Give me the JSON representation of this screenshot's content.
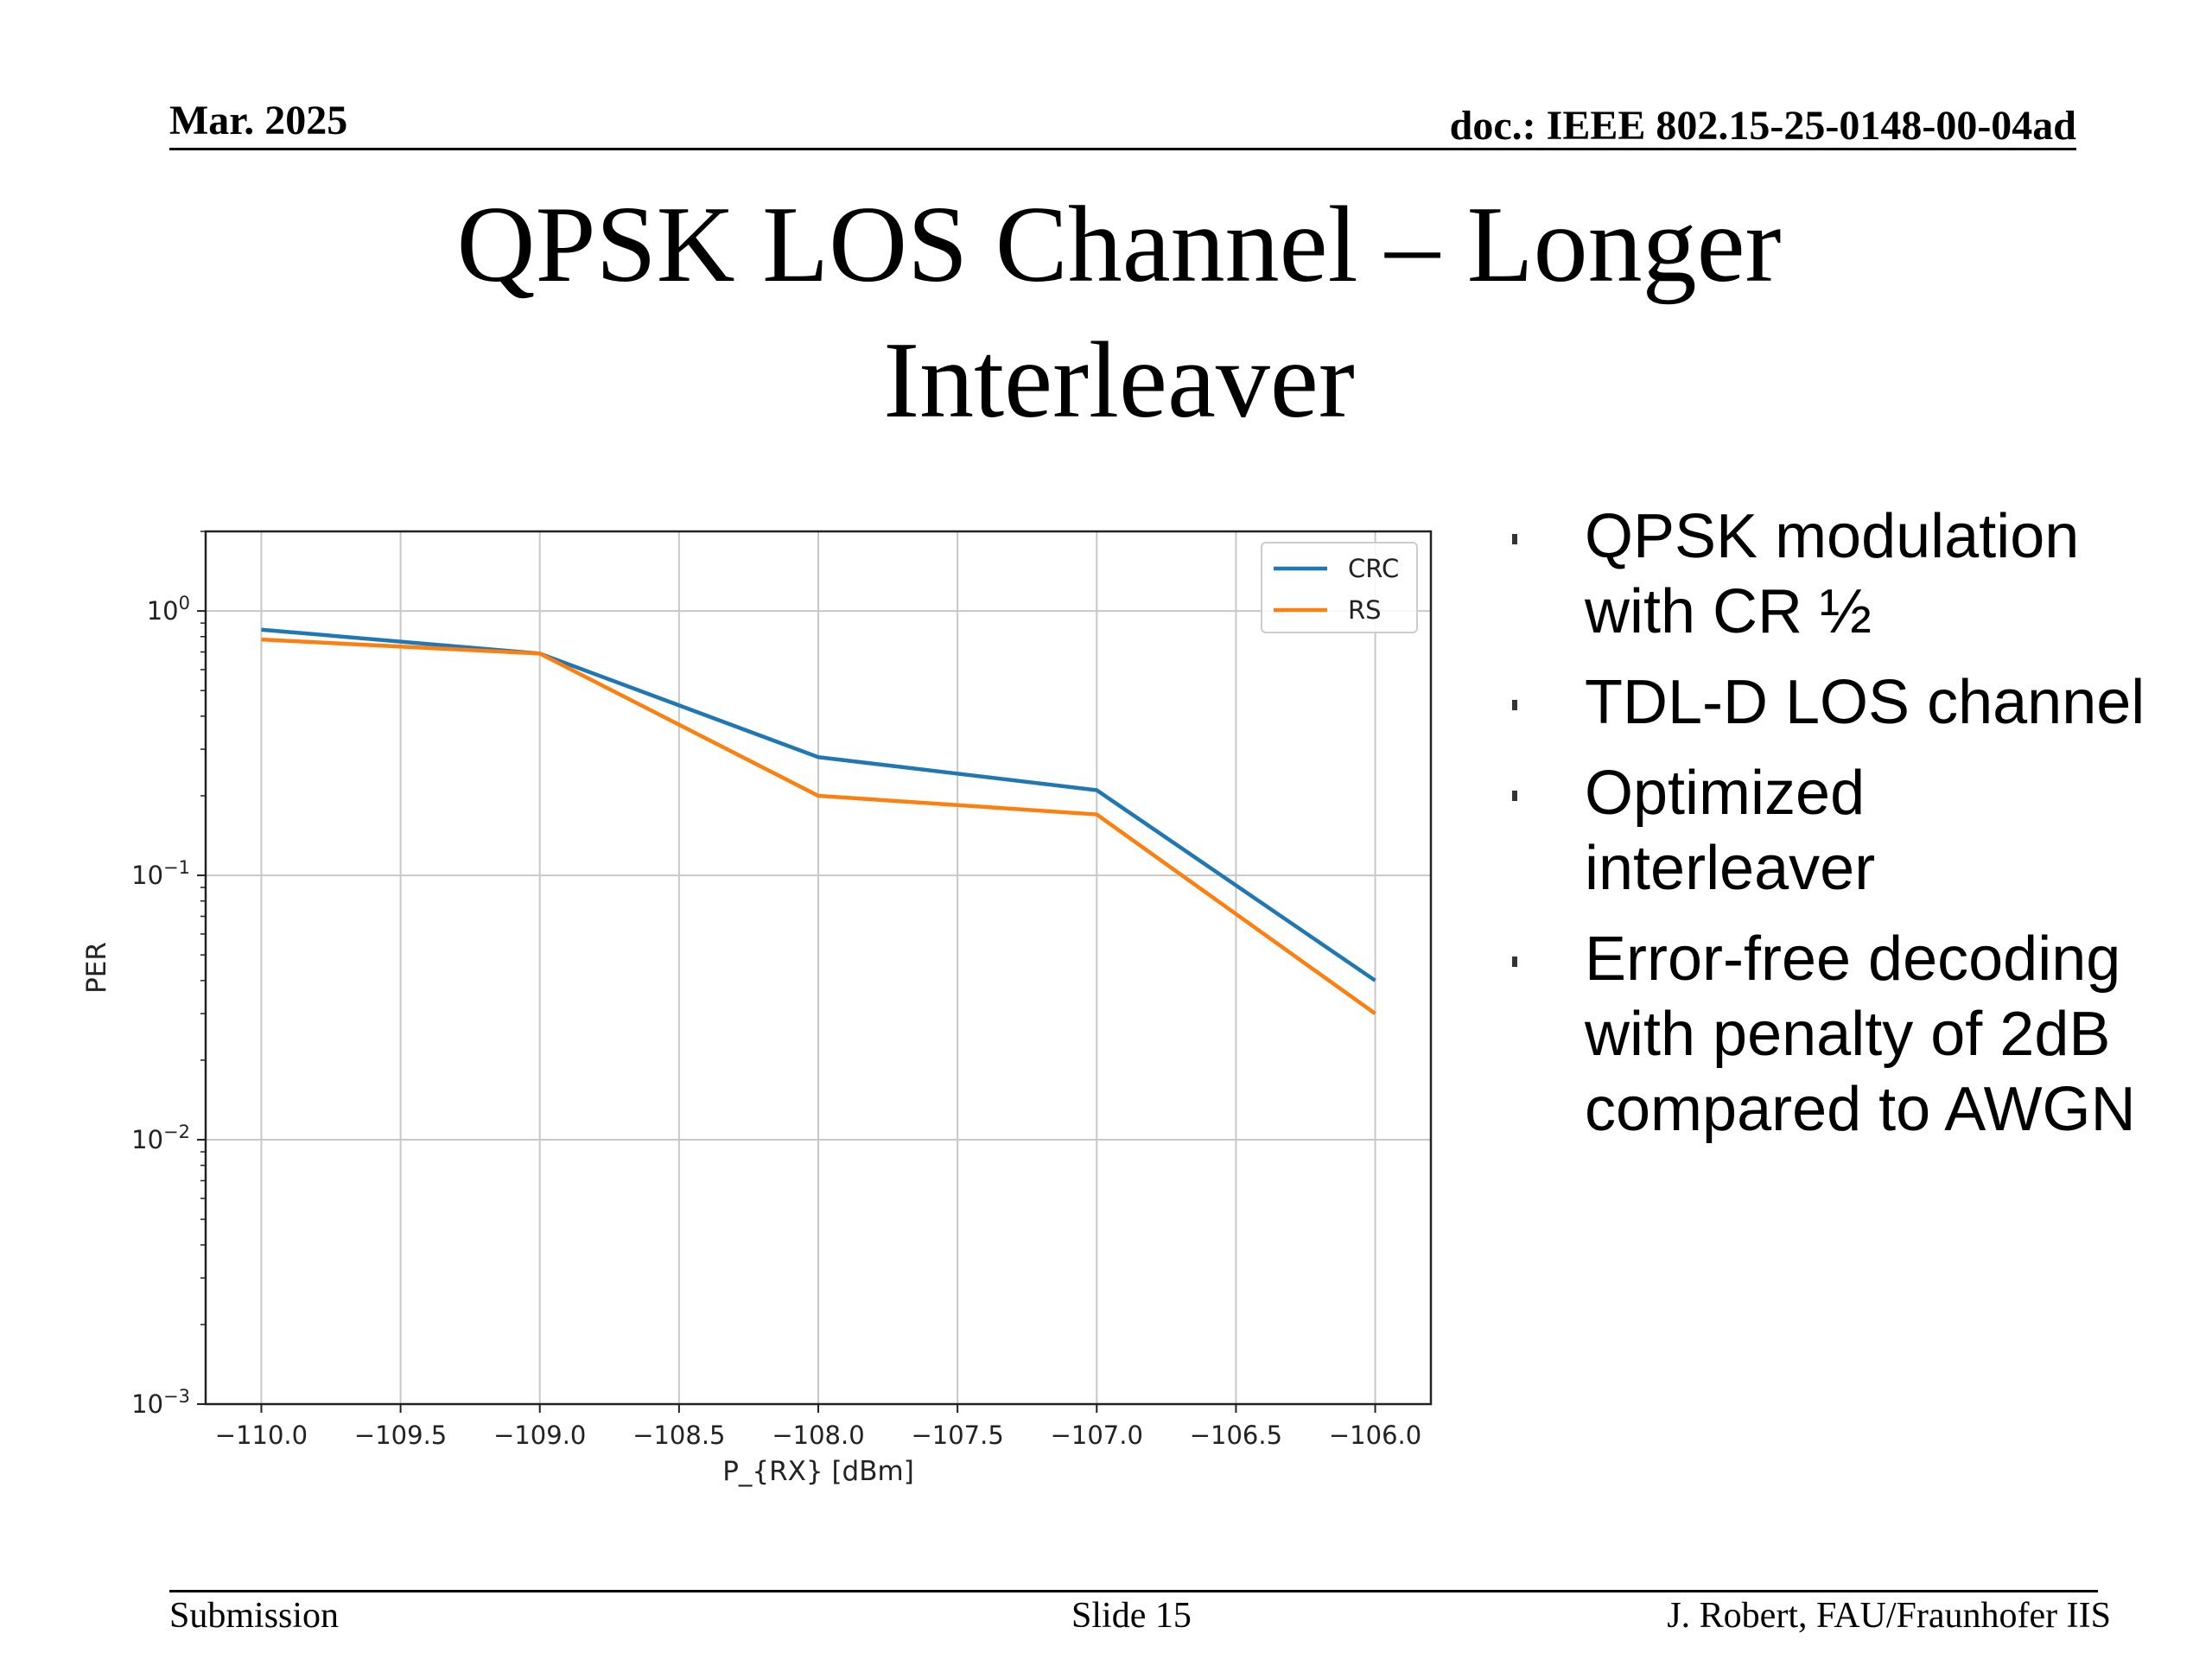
{
  "header": {
    "date": "Mar. 2025",
    "doc": "doc.: IEEE 802.15-25-0148-00-04ad"
  },
  "slide_title_line1": "QPSK LOS Channel – Longer",
  "slide_title_line2": "Interleaver",
  "bullets": [
    "QPSK modulation with CR ½",
    "TDL-D LOS channel",
    "Optimized interleaver",
    "Error-free decoding with penalty of 2dB compared to AWGN"
  ],
  "footer": {
    "left": "Submission",
    "center": "Slide 15",
    "right": "J. Robert, FAU/Fraunhofer IIS"
  },
  "chart_data": {
    "type": "line",
    "title": "",
    "xlabel": "P_{RX} [dBm]",
    "ylabel": "PER",
    "yscale": "log",
    "xlim": [
      -110.2,
      -105.8
    ],
    "ylim": [
      0.001,
      2.0
    ],
    "xticks": [
      -110.0,
      -109.5,
      -109.0,
      -108.5,
      -108.0,
      -107.5,
      -107.0,
      -106.5,
      -106.0
    ],
    "xtick_labels": [
      "−110.0",
      "−109.5",
      "−109.0",
      "−108.5",
      "−108.0",
      "−107.5",
      "−107.0",
      "−106.5",
      "−106.0"
    ],
    "yticks": [
      {
        "value": 1,
        "base": "10",
        "exp": "0"
      },
      {
        "value": 0.1,
        "base": "10",
        "exp": "−1"
      },
      {
        "value": 0.01,
        "base": "10",
        "exp": "−2"
      },
      {
        "value": 0.001,
        "base": "10",
        "exp": "−3"
      }
    ],
    "grid": true,
    "legend_position": "top-right",
    "x": [
      -110.0,
      -109.0,
      -108.0,
      -107.0,
      -106.0
    ],
    "series": [
      {
        "name": "CRC",
        "color": "#1f77b4",
        "values": [
          0.85,
          0.69,
          0.28,
          0.21,
          0.04
        ]
      },
      {
        "name": "RS",
        "color": "#ff7f0e",
        "values": [
          0.78,
          0.69,
          0.2,
          0.17,
          0.03
        ]
      }
    ]
  }
}
